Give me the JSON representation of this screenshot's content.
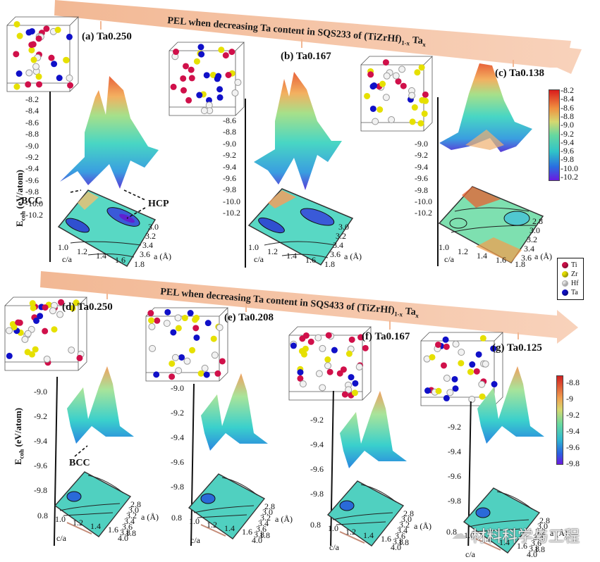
{
  "top_row": {
    "arrow_label": "PEL when decreasing Ta content in SQS233 of (TiZrHf)",
    "arrow_sub": "1-x",
    "arrow_tail": "Ta",
    "arrow_tail_sub": "x",
    "panels": [
      {
        "id": "a",
        "label": "(a) Ta0.250",
        "z_ticks": [
          "-8.2",
          "-8.4",
          "-8.6",
          "-8.8",
          "-9.0",
          "-9.2",
          "-9.4",
          "-9.6",
          "-9.8",
          "-10.0",
          "-10.2"
        ],
        "ca_ticks": [
          "1.0",
          "1.2",
          "1.4",
          "1.6",
          "1.8"
        ],
        "a_ticks": [
          "3.0",
          "3.2",
          "3.4",
          "3.6"
        ],
        "notes": [
          "BCC",
          "HCP"
        ]
      },
      {
        "id": "b",
        "label": "(b) Ta0.167",
        "z_ticks": [
          "-8.6",
          "-8.8",
          "-9.0",
          "-9.2",
          "-9.4",
          "-9.6",
          "-9.8",
          "-10.0",
          "-10.2"
        ],
        "ca_ticks": [
          "1.0",
          "1.2",
          "1.4",
          "1.6",
          "1.8"
        ],
        "a_ticks": [
          "3.0",
          "3.2",
          "3.4",
          "3.6"
        ]
      },
      {
        "id": "c",
        "label": "(c) Ta0.138",
        "z_ticks": [
          "-9.0",
          "-9.2",
          "-9.4",
          "-9.6",
          "-9.8",
          "-10.0",
          "-10.2"
        ],
        "ca_ticks": [
          "1.0",
          "1.2",
          "1.4",
          "1.6",
          "1.8"
        ],
        "a_ticks": [
          "2.8",
          "3.0",
          "3.2",
          "3.4",
          "3.6"
        ]
      }
    ],
    "ylabel_main": "E",
    "ylabel_sub": "coh",
    "ylabel_unit": " (eV/atom)",
    "xlabel_ca": "c/a",
    "xlabel_a": "a (Å)",
    "colorbar_ticks": [
      "-8.2",
      "-8.4",
      "-8.6",
      "-8.8",
      "-9.0",
      "-9.2",
      "-9.4",
      "-9.6",
      "-9.8",
      "-10.0",
      "-10.2"
    ]
  },
  "legend": {
    "items": [
      {
        "label": "Ti",
        "color": "#d0104a"
      },
      {
        "label": "Zr",
        "color": "#e6e000"
      },
      {
        "label": "Hf",
        "color": "#f2f2f2"
      },
      {
        "label": "Ta",
        "color": "#1010c8"
      }
    ]
  },
  "bottom_row": {
    "arrow_label": "PEL when decreasing Ta content in SQS433 of (TiZrHf)",
    "arrow_sub": "1-x",
    "arrow_tail": "Ta",
    "arrow_tail_sub": "x",
    "panels": [
      {
        "id": "d",
        "label": "(d) Ta0.250",
        "z_ticks": [
          "-9.0",
          "-9.2",
          "-9.4",
          "-9.6",
          "-9.8"
        ],
        "note": "BCC"
      },
      {
        "id": "e",
        "label": "(e) Ta0.208",
        "z_ticks": [
          "-9.0",
          "-9.2",
          "-9.4",
          "-9.6",
          "-9.8"
        ]
      },
      {
        "id": "f",
        "label": "(f) Ta0.167",
        "z_ticks": [
          "-9.2",
          "-9.4",
          "-9.6",
          "-9.8"
        ]
      },
      {
        "id": "g",
        "label": "(g) Ta0.125",
        "z_ticks": [
          "-9.2",
          "-9.4",
          "-9.6",
          "-9.8"
        ]
      }
    ],
    "ca_ticks": [
      "0.8",
      "1.0",
      "1.2",
      "1.4",
      "1.6",
      "1.8"
    ],
    "a_ticks": [
      "2.8",
      "3.0",
      "3.2",
      "3.4",
      "3.6",
      "3.8",
      "4.0"
    ],
    "ylabel_main": "E",
    "ylabel_sub": "coh",
    "ylabel_unit": " (eV/atom)",
    "xlabel_ca": "c/a",
    "xlabel_a": "a (Å)",
    "colorbar_ticks": [
      "-8.8",
      "-9",
      "-9.2",
      "-9.4",
      "-9.6",
      "-9.8"
    ]
  },
  "colors": {
    "arrow": "#f5c4a6",
    "ti": "#d0104a",
    "zr": "#e6e000",
    "hf": "#f2f2f2",
    "ta": "#1010c8"
  },
  "watermark": "材料科学与工程"
}
